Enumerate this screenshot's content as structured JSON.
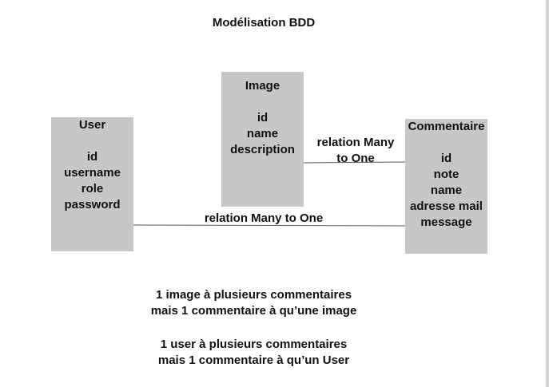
{
  "title": "Modélisation BDD",
  "entities": {
    "user": {
      "name": "User",
      "fields": [
        "id",
        "username",
        "role",
        "password"
      ]
    },
    "image": {
      "name": "Image",
      "fields": [
        "id",
        "name",
        "description"
      ]
    },
    "commentaire": {
      "name": "Commentaire",
      "fields": [
        "id",
        "note",
        "name",
        "adresse mail",
        "message"
      ]
    }
  },
  "relations": {
    "image_commentaire": {
      "label_line1": "relation Many",
      "label_line2": "to One"
    },
    "user_commentaire": {
      "label": "relation Many to One"
    }
  },
  "notes": {
    "image_rule": [
      "1 image à plusieurs commentaires",
      "mais 1 commentaire à qu’une image"
    ],
    "user_rule": [
      "1 user à plusieurs commentaires",
      "mais 1 commentaire à qu’un User"
    ]
  },
  "colors": {
    "entity_fill": "#c7c7c7",
    "connector": "#555555",
    "text": "#111111"
  }
}
